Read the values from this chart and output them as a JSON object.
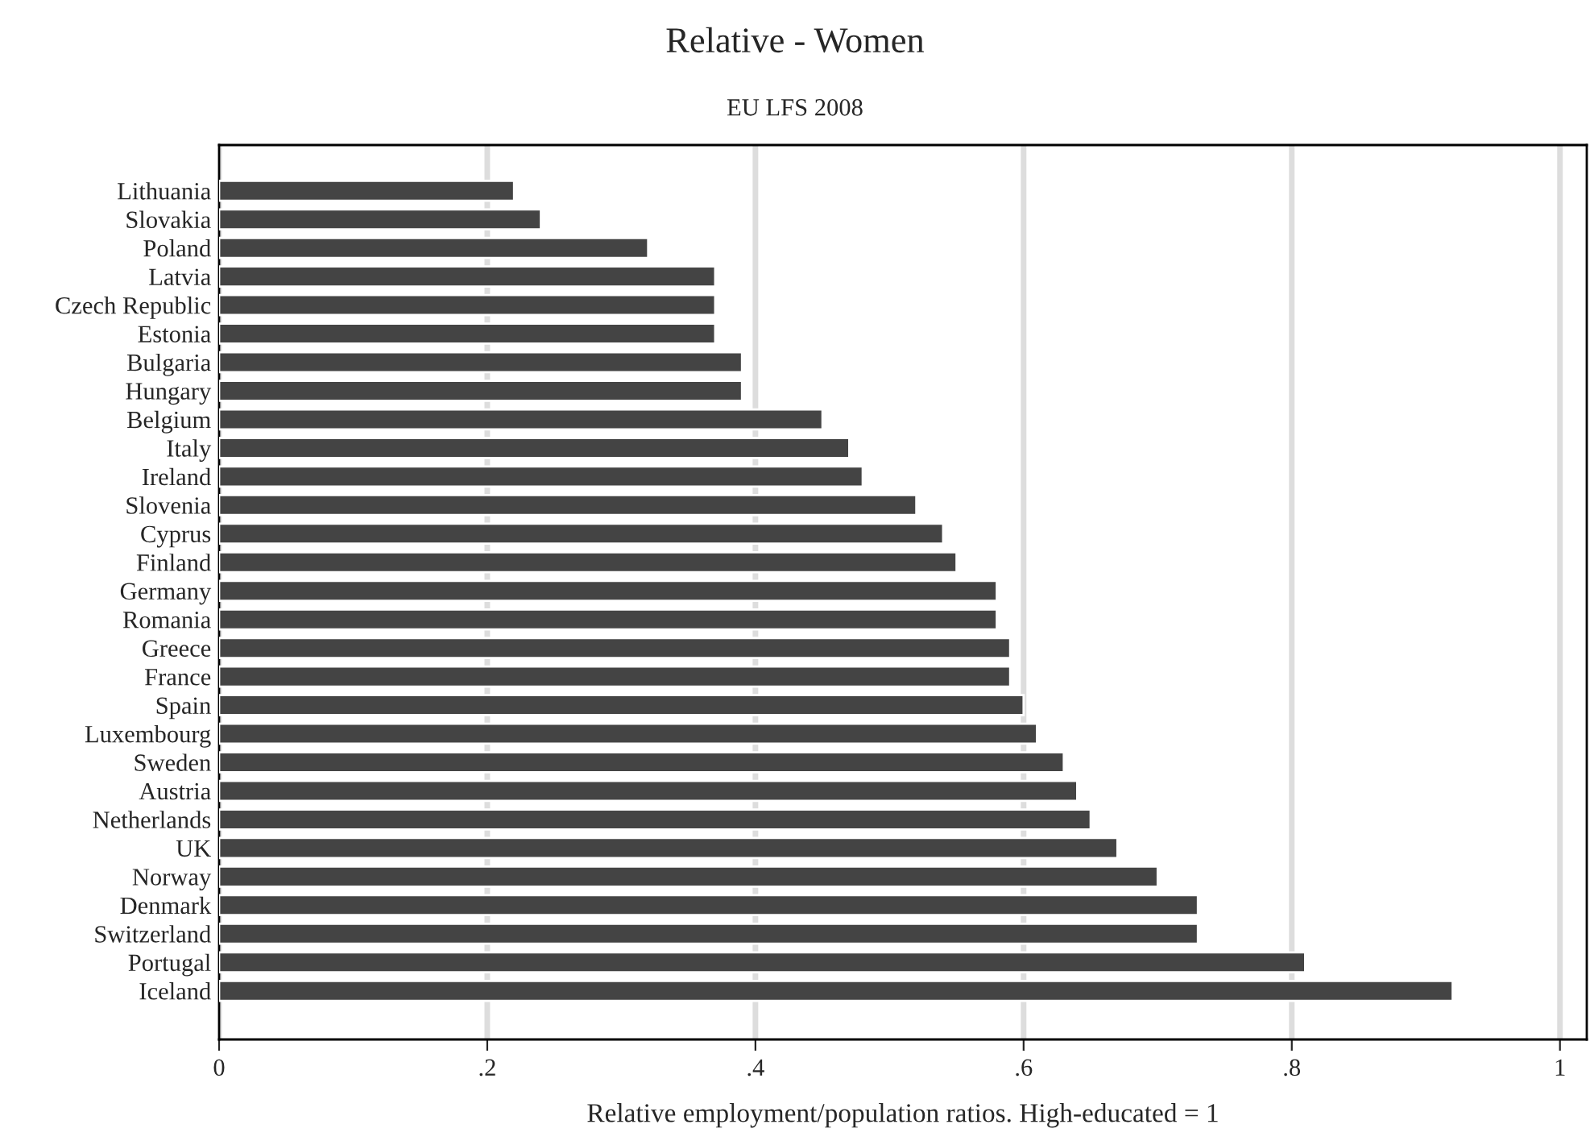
{
  "chart_data": {
    "type": "bar",
    "orientation": "horizontal",
    "title": "Relative - Women",
    "subtitle": "EU LFS 2008",
    "xlabel": "Relative employment/population ratios. High-educated = 1",
    "categories": [
      "Lithuania",
      "Slovakia",
      "Poland",
      "Latvia",
      "Czech Republic",
      "Estonia",
      "Bulgaria",
      "Hungary",
      "Belgium",
      "Italy",
      "Ireland",
      "Slovenia",
      "Cyprus",
      "Finland",
      "Germany",
      "Romania",
      "Greece",
      "France",
      "Spain",
      "Luxembourg",
      "Sweden",
      "Austria",
      "Netherlands",
      "UK",
      "Norway",
      "Denmark",
      "Switzerland",
      "Portugal",
      "Iceland"
    ],
    "values": [
      0.22,
      0.24,
      0.32,
      0.37,
      0.37,
      0.37,
      0.39,
      0.39,
      0.45,
      0.47,
      0.48,
      0.52,
      0.54,
      0.55,
      0.58,
      0.58,
      0.59,
      0.59,
      0.6,
      0.61,
      0.63,
      0.64,
      0.65,
      0.67,
      0.7,
      0.73,
      0.73,
      0.81,
      0.92
    ],
    "color": "#444444",
    "xlim": [
      0,
      1.02
    ],
    "xticks": [
      {
        "value": 0,
        "label": "0"
      },
      {
        "value": 0.2,
        "label": ".2"
      },
      {
        "value": 0.4,
        "label": ".4"
      },
      {
        "value": 0.6,
        "label": ".6"
      },
      {
        "value": 0.8,
        "label": ".8"
      },
      {
        "value": 1,
        "label": "1"
      }
    ],
    "grid": "x"
  }
}
